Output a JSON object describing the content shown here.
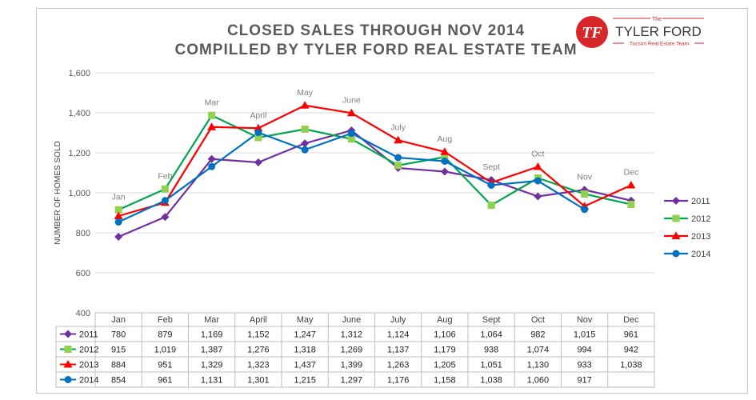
{
  "header": {
    "title_line1": "CLOSED SALES THROUGH NOV 2014",
    "title_line2": "COMPILLED BY TYLER FORD REAL ESTATE TEAM"
  },
  "logo": {
    "monogram": "TF",
    "the": "The",
    "name": "TYLER FORD",
    "tagline": "Tucson Real Estate Team",
    "color": "#d7262a"
  },
  "chart_data": {
    "type": "line",
    "ylabel": "NUMBER OF HOMES SOLD",
    "ylim": [
      400,
      1600
    ],
    "yticks": [
      400,
      600,
      800,
      1000,
      1200,
      1400,
      1600
    ],
    "grid": true,
    "legend": "right",
    "categories": [
      "Jan",
      "Feb",
      "Mar",
      "April",
      "May",
      "June",
      "July",
      "Aug",
      "Sept",
      "Oct",
      "Nov",
      "Dec"
    ],
    "point_labels": [
      "Jan",
      "Feb",
      "Mar",
      "April",
      "May",
      "June",
      "July",
      "Aug",
      "Sept",
      "Oct",
      "Nov",
      "Dec"
    ],
    "series": [
      {
        "name": "2011",
        "color": "#7030a0",
        "marker": "diamond",
        "values": [
          780,
          879,
          1169,
          1152,
          1247,
          1312,
          1124,
          1106,
          1064,
          982,
          1015,
          961
        ],
        "table": [
          "780",
          "879",
          "1,169",
          "1,152",
          "1,247",
          "1,312",
          "1,124",
          "1,106",
          "1,064",
          "982",
          "1,015",
          "961"
        ]
      },
      {
        "name": "2012",
        "color": "#00a550",
        "marker": "square",
        "values": [
          915,
          1019,
          1387,
          1276,
          1318,
          1269,
          1137,
          1179,
          938,
          1074,
          994,
          942
        ],
        "table": [
          "915",
          "1,019",
          "1,387",
          "1,276",
          "1,318",
          "1,269",
          "1,137",
          "1,179",
          "938",
          "1,074",
          "994",
          "942"
        ]
      },
      {
        "name": "2013",
        "color": "#ff0000",
        "marker": "triangle",
        "values": [
          884,
          951,
          1329,
          1323,
          1437,
          1399,
          1263,
          1205,
          1051,
          1130,
          933,
          1038
        ],
        "table": [
          "884",
          "951",
          "1,329",
          "1,323",
          "1,437",
          "1,399",
          "1,263",
          "1,205",
          "1,051",
          "1,130",
          "933",
          "1,038"
        ]
      },
      {
        "name": "2014",
        "color": "#0070c0",
        "marker": "circle",
        "values": [
          854,
          961,
          1131,
          1301,
          1215,
          1297,
          1176,
          1158,
          1038,
          1060,
          917,
          null
        ],
        "table": [
          "854",
          "961",
          "1,131",
          "1,301",
          "1,215",
          "1,297",
          "1,176",
          "1,158",
          "1,038",
          "1,060",
          "917",
          ""
        ]
      }
    ]
  }
}
